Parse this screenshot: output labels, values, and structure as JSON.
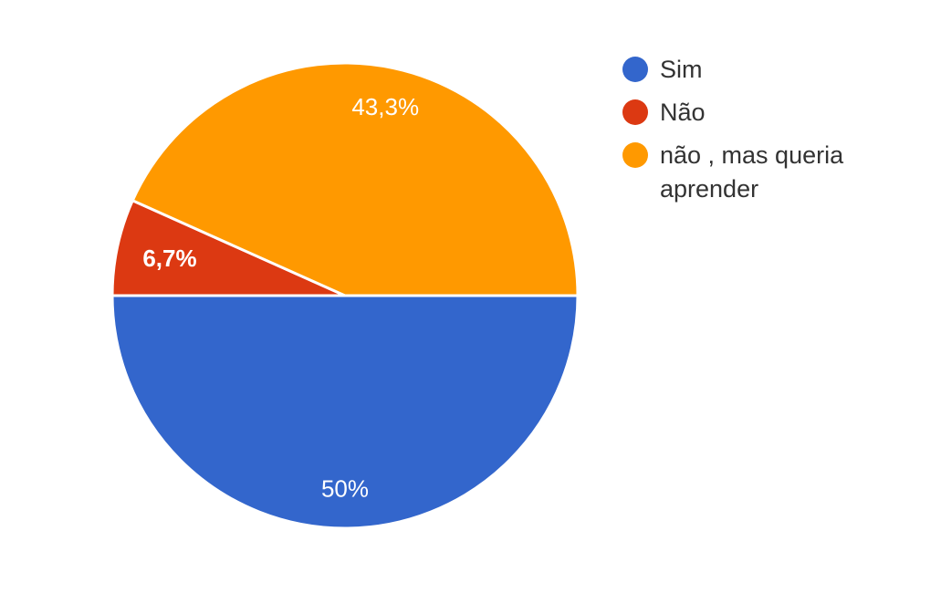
{
  "chart_data": {
    "type": "pie",
    "title": "",
    "slices": [
      {
        "label": "Sim",
        "value": 50,
        "display": "50%",
        "color": "#3366cc"
      },
      {
        "label": "Não",
        "value": 6.7,
        "display": "6,7%",
        "color": "#dc3912"
      },
      {
        "label": "não , mas queria aprender",
        "value": 43.3,
        "display": "43,3%",
        "color": "#ff9900"
      }
    ],
    "legend_position": "right"
  }
}
